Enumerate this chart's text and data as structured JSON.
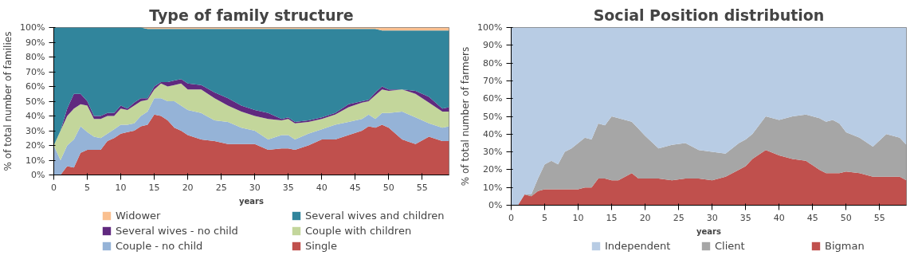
{
  "chart_data": [
    {
      "type": "area",
      "title": "Type of family structure",
      "xlabel": "years",
      "ylabel": "% of total number of families",
      "stacked": true,
      "legend": "bottom",
      "grid": false,
      "x": [
        0,
        1,
        2,
        3,
        4,
        5,
        6,
        7,
        8,
        9,
        10,
        11,
        12,
        13,
        14,
        15,
        16,
        17,
        18,
        19,
        20,
        22,
        24,
        26,
        28,
        30,
        32,
        34,
        35,
        36,
        38,
        40,
        42,
        44,
        46,
        47,
        48,
        49,
        50,
        52,
        54,
        56,
        58,
        59
      ],
      "xlim": [
        0,
        59
      ],
      "xticks": [
        0,
        5,
        10,
        15,
        20,
        25,
        30,
        35,
        40,
        45,
        50,
        55
      ],
      "ylim": [
        0,
        100
      ],
      "yticks": [
        {
          "value": 0,
          "label": "0%"
        },
        {
          "value": 10,
          "label": "10%"
        },
        {
          "value": 20,
          "label": "20%"
        },
        {
          "value": 30,
          "label": "30%"
        },
        {
          "value": 40,
          "label": "40%"
        },
        {
          "value": 50,
          "label": "50%"
        },
        {
          "value": 60,
          "label": "60%"
        },
        {
          "value": 70,
          "label": "70%"
        },
        {
          "value": 80,
          "label": "80%"
        },
        {
          "value": 90,
          "label": "90%"
        },
        {
          "value": 100,
          "label": "100%"
        }
      ],
      "series": [
        {
          "name": "Single",
          "color": "#c0504d",
          "values": [
            0,
            0,
            6,
            5,
            15,
            17,
            17,
            17,
            23,
            25,
            28,
            29,
            30,
            33,
            34,
            41,
            40,
            37,
            32,
            30,
            27,
            24,
            23,
            21,
            21,
            21,
            17,
            18,
            18,
            17,
            20,
            24,
            24,
            27,
            30,
            33,
            32,
            34,
            32,
            24,
            21,
            26,
            23,
            23
          ]
        },
        {
          "name": "Couple - no child",
          "color": "#95b3d7",
          "values": [
            20,
            10,
            14,
            19,
            18,
            12,
            9,
            8,
            5,
            6,
            6,
            5,
            5,
            7,
            9,
            11,
            12,
            13,
            18,
            17,
            17,
            18,
            14,
            15,
            11,
            9,
            7,
            9,
            9,
            7,
            8,
            7,
            10,
            9,
            8,
            8,
            6,
            8,
            10,
            19,
            18,
            9,
            9,
            10
          ]
        },
        {
          "name": "Couple with children",
          "color": "#c3d69b",
          "values": [
            0,
            20,
            20,
            21,
            15,
            18,
            12,
            13,
            12,
            9,
            11,
            10,
            12,
            10,
            8,
            6,
            10,
            10,
            11,
            15,
            14,
            16,
            15,
            11,
            11,
            10,
            14,
            10,
            11,
            11,
            8,
            7,
            7,
            10,
            11,
            9,
            16,
            16,
            15,
            15,
            16,
            14,
            11,
            10
          ]
        },
        {
          "name": "Several wives - no child",
          "color": "#60297f",
          "values": [
            0,
            0,
            5,
            10,
            7,
            3,
            2,
            2,
            2,
            2,
            2,
            1,
            2,
            2,
            1,
            2,
            1,
            3,
            3,
            3,
            4,
            3,
            4,
            5,
            4,
            4,
            4,
            1,
            1,
            1,
            1,
            1,
            1,
            2,
            1,
            1,
            2,
            2,
            1,
            0,
            2,
            4,
            2,
            3
          ]
        },
        {
          "name": "Several wives and children",
          "color": "#31859c",
          "values": [
            80,
            70,
            55,
            45,
            45,
            50,
            60,
            60,
            58,
            58,
            53,
            55,
            51,
            48,
            47,
            39,
            36,
            36,
            35,
            34,
            37,
            38,
            43,
            47,
            52,
            55,
            57,
            61,
            60,
            63,
            62,
            60,
            57,
            51,
            49,
            48,
            43,
            38,
            40,
            40,
            41,
            45,
            53,
            52
          ]
        },
        {
          "name": "Widower",
          "color": "#fac090",
          "values": [
            0,
            0,
            0,
            0,
            0,
            0,
            0,
            0,
            0,
            0,
            0,
            0,
            0,
            0,
            1,
            1,
            1,
            1,
            1,
            1,
            1,
            1,
            1,
            1,
            1,
            1,
            1,
            1,
            1,
            1,
            1,
            1,
            1,
            1,
            1,
            1,
            1,
            2,
            2,
            2,
            2,
            2,
            2,
            2
          ]
        }
      ]
    },
    {
      "type": "area",
      "title": "Social Position distribution",
      "xlabel": "years",
      "ylabel": "% of total number of farmers",
      "stacked": true,
      "legend": "bottom",
      "grid": false,
      "x": [
        0,
        1,
        2,
        3,
        4,
        5,
        6,
        7,
        8,
        9,
        10,
        11,
        12,
        13,
        14,
        15,
        16,
        17,
        18,
        19,
        20,
        22,
        24,
        26,
        28,
        30,
        32,
        34,
        35,
        36,
        38,
        40,
        42,
        44,
        46,
        47,
        48,
        49,
        50,
        52,
        54,
        56,
        58,
        59
      ],
      "xlim": [
        0,
        59
      ],
      "xticks": [
        0,
        5,
        10,
        15,
        20,
        25,
        30,
        35,
        40,
        45,
        50,
        55
      ],
      "ylim": [
        0,
        100
      ],
      "yticks": [
        {
          "value": 0,
          "label": "0%"
        },
        {
          "value": 10,
          "label": "10%"
        },
        {
          "value": 20,
          "label": "20%"
        },
        {
          "value": 30,
          "label": "30%"
        },
        {
          "value": 40,
          "label": "40%"
        },
        {
          "value": 50,
          "label": "50%"
        },
        {
          "value": 60,
          "label": "60%"
        },
        {
          "value": 70,
          "label": "70%"
        },
        {
          "value": 80,
          "label": "80%"
        },
        {
          "value": 90,
          "label": "90%"
        },
        {
          "value": 100,
          "label": "100%"
        }
      ],
      "series": [
        {
          "name": "Bigman",
          "color": "#c0504d",
          "values": [
            0,
            0,
            6,
            5,
            8,
            9,
            9,
            9,
            9,
            9,
            9,
            10,
            10,
            15,
            15,
            14,
            14,
            16,
            18,
            15,
            15,
            15,
            14,
            15,
            15,
            14,
            16,
            20,
            22,
            26,
            31,
            28,
            26,
            25,
            20,
            18,
            18,
            18,
            19,
            18,
            16,
            16,
            16,
            14
          ]
        },
        {
          "name": "Client",
          "color": "#a6a6a6",
          "values": [
            0,
            0,
            0,
            1,
            7,
            14,
            16,
            14,
            21,
            23,
            26,
            28,
            27,
            31,
            30,
            36,
            35,
            32,
            29,
            28,
            24,
            17,
            20,
            20,
            16,
            16,
            13,
            15,
            15,
            14,
            19,
            20,
            24,
            26,
            29,
            29,
            30,
            28,
            22,
            20,
            17,
            24,
            22,
            20
          ]
        },
        {
          "name": "Independent",
          "color": "#b8cce4",
          "values": [
            100,
            100,
            94,
            94,
            85,
            77,
            75,
            77,
            70,
            68,
            65,
            62,
            63,
            54,
            55,
            50,
            51,
            52,
            53,
            57,
            61,
            68,
            66,
            65,
            69,
            70,
            71,
            65,
            63,
            60,
            50,
            52,
            50,
            49,
            51,
            53,
            52,
            54,
            59,
            62,
            67,
            60,
            62,
            66
          ]
        }
      ]
    }
  ]
}
